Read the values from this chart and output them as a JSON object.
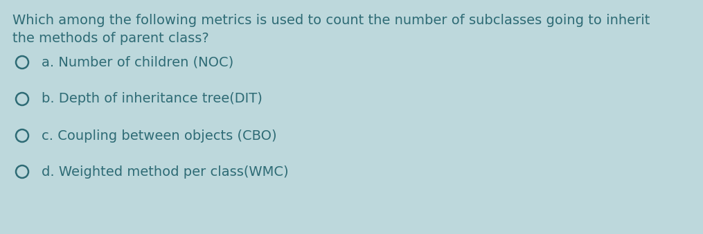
{
  "background_color": "#bdd8dc",
  "text_color": "#2e6b75",
  "question_line1": "Which among the following metrics is used to count the number of subclasses going to inherit",
  "question_line2": "the methods of parent class?",
  "options": [
    "a. Number of children (NOC)",
    "b. Depth of inheritance tree(DIT)",
    "c. Coupling between objects (CBO)",
    "d. Weighted method per class(WMC)"
  ],
  "question_fontsize": 14,
  "option_fontsize": 14,
  "circle_edge_color": "#2e6b75",
  "circle_face_color": "#bdd8dc",
  "circle_linewidth": 1.8
}
